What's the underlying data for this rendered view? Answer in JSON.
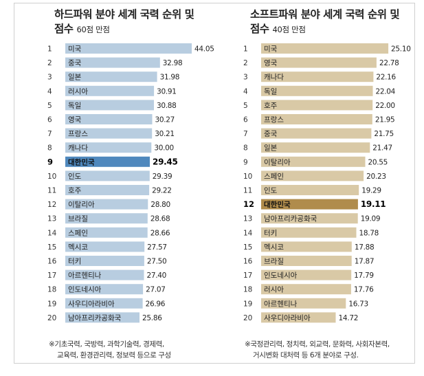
{
  "chart_data": [
    {
      "type": "bar",
      "title": "하드파워 분야 세계 국력 순위 및",
      "title_line2": "점수",
      "subtitle": "60점 만점",
      "ranks": [
        "1",
        "2",
        "3",
        "4",
        "5",
        "6",
        "7",
        "8",
        "9",
        "10",
        "11",
        "12",
        "13",
        "14",
        "15",
        "16",
        "17",
        "18",
        "19",
        "20"
      ],
      "categories": [
        "미국",
        "중국",
        "일본",
        "러시아",
        "독일",
        "영국",
        "프랑스",
        "캐나다",
        "대한민국",
        "인도",
        "호주",
        "이탈리아",
        "브라질",
        "스페인",
        "멕시코",
        "터키",
        "아르헨티나",
        "인도네시아",
        "사우디아라비아",
        "남아프리카공화국"
      ],
      "values": [
        44.05,
        32.98,
        31.98,
        30.91,
        30.88,
        30.27,
        30.21,
        30.0,
        29.45,
        29.39,
        29.22,
        28.8,
        28.68,
        28.66,
        27.57,
        27.5,
        27.4,
        27.07,
        26.96,
        25.86
      ],
      "value_labels": [
        "44.05",
        "32.98",
        "31.98",
        "30.91",
        "30.88",
        "30.27",
        "30.21",
        "30.00",
        "29.45",
        "29.39",
        "29.22",
        "28.80",
        "28.68",
        "28.66",
        "27.57",
        "27.50",
        "27.40",
        "27.07",
        "26.96",
        "25.86"
      ],
      "highlight": "대한민국",
      "bar_color": "#b8cde0",
      "highlight_color": "#4f88bd",
      "xlim": [
        0,
        45
      ],
      "note_lines": [
        "※기초국력, 국방력, 과학기술력, 경제력,",
        "교육력, 환경관리력, 정보력 등으로 구성"
      ]
    },
    {
      "type": "bar",
      "title": "소프트파워 분야 세계 국력 순위 및",
      "title_line2": "점수",
      "subtitle": "40점 만점",
      "ranks": [
        "1",
        "2",
        "3",
        "4",
        "5",
        "6",
        "7",
        "8",
        "9",
        "10",
        "11",
        "12",
        "13",
        "14",
        "15",
        "16",
        "17",
        "18",
        "19",
        "20"
      ],
      "categories": [
        "미국",
        "영국",
        "캐나다",
        "독일",
        "호주",
        "프랑스",
        "중국",
        "일본",
        "이탈리아",
        "스페인",
        "인도",
        "대한민국",
        "남아프리카공화국",
        "터키",
        "멕시코",
        "브라질",
        "인도네시아",
        "러시아",
        "아르헨티나",
        "사우디아라비아"
      ],
      "values": [
        25.1,
        22.78,
        22.16,
        22.04,
        22.0,
        21.95,
        21.75,
        21.47,
        20.55,
        20.23,
        19.29,
        19.11,
        19.09,
        18.78,
        17.88,
        17.87,
        17.79,
        17.76,
        16.73,
        14.72
      ],
      "value_labels": [
        "25.10",
        "22.78",
        "22.16",
        "22.04",
        "22.00",
        "21.95",
        "21.75",
        "21.47",
        "20.55",
        "20.23",
        "19.29",
        "19.11",
        "19.09",
        "18.78",
        "17.88",
        "17.87",
        "17.79",
        "17.76",
        "16.73",
        "14.72"
      ],
      "highlight": "대한민국",
      "bar_color": "#d9c9a6",
      "highlight_color": "#b08c4c",
      "xlim": [
        0,
        25.5
      ],
      "note_lines": [
        "※국정관리력, 정치력, 외교력, 문화력, 사회자본력,",
        "거시변화 대처력 등 6개 분야로 구성."
      ]
    }
  ]
}
